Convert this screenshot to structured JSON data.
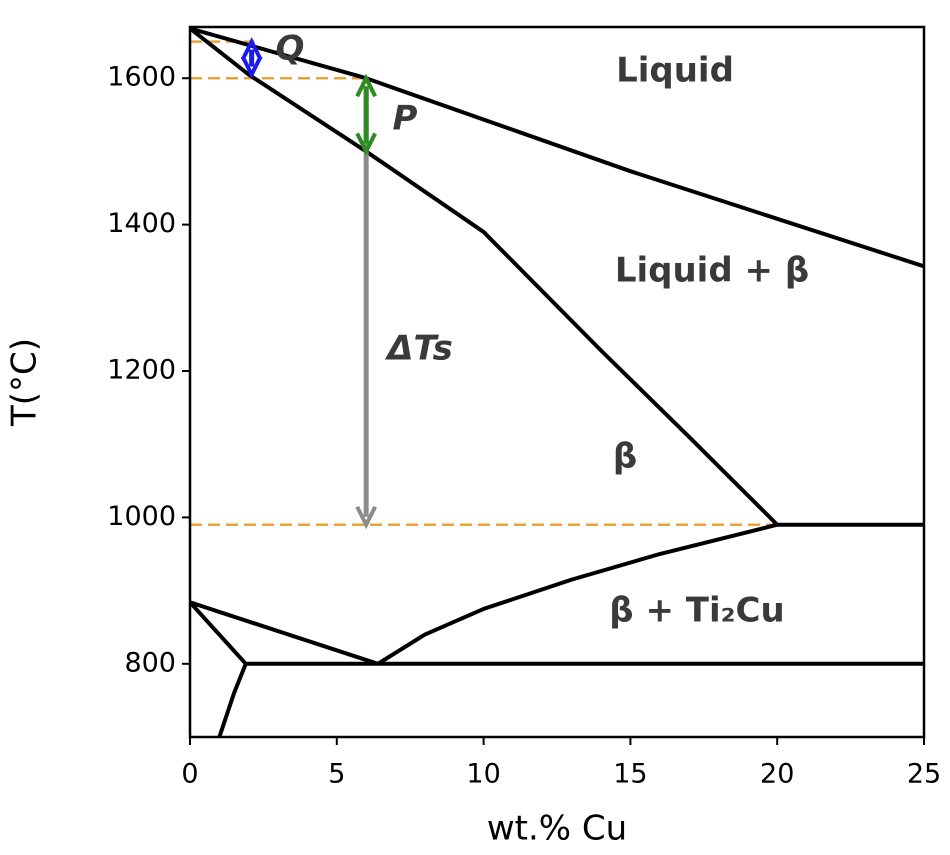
{
  "chart_data": {
    "type": "phase-diagram",
    "xlabel": "wt.% Cu",
    "ylabel": "T(°C)",
    "xlim": [
      0,
      25
    ],
    "ylim": [
      700,
      1670
    ],
    "xticks": [
      0,
      5,
      10,
      15,
      20,
      25
    ],
    "yticks": [
      800,
      1000,
      1200,
      1400,
      1600
    ],
    "series": [
      {
        "color": "#000000",
        "style": "solid",
        "x": [
          0,
          6,
          15,
          25
        ],
        "values": [
          1668,
          1600,
          1473,
          1343
        ]
      },
      {
        "color": "#000000",
        "style": "solid",
        "x": [
          0,
          2,
          6,
          10,
          14,
          17,
          20
        ],
        "values": [
          1668,
          1605,
          1500,
          1390,
          1228,
          1110,
          990
        ]
      },
      {
        "color": "#000000",
        "style": "solid",
        "x": [
          20,
          25
        ],
        "values": [
          990,
          990
        ]
      },
      {
        "color": "#000000",
        "style": "solid",
        "x": [
          6.4,
          8,
          10,
          13,
          16,
          20
        ],
        "values": [
          800,
          840,
          875,
          915,
          950,
          990
        ]
      },
      {
        "color": "#000000",
        "style": "solid",
        "x": [
          0,
          6.4
        ],
        "values": [
          884,
          800
        ]
      },
      {
        "color": "#000000",
        "style": "solid",
        "x": [
          0,
          1.9
        ],
        "values": [
          884,
          800
        ]
      },
      {
        "color": "#000000",
        "style": "solid",
        "x": [
          1.9,
          25
        ],
        "values": [
          800,
          800
        ]
      },
      {
        "color": "#000000",
        "style": "solid",
        "x": [
          1.9,
          1.5,
          1
        ],
        "values": [
          800,
          760,
          700
        ]
      },
      {
        "color": "#e8a43a",
        "style": "dashed",
        "x": [
          0,
          2.2
        ],
        "values": [
          1650,
          1650
        ]
      },
      {
        "color": "#e8a43a",
        "style": "dashed",
        "x": [
          0,
          6
        ],
        "values": [
          1600,
          1600
        ]
      },
      {
        "color": "#e8a43a",
        "style": "dashed",
        "x": [
          0,
          20
        ],
        "values": [
          990,
          990
        ]
      }
    ],
    "arrows": [
      {
        "color": "#8c8c8c",
        "x": 6,
        "values": [
          1600,
          990
        ]
      },
      {
        "color": "#2e8b22",
        "x": 6,
        "values": [
          1600,
          1500
        ]
      },
      {
        "color": "#1a1aee",
        "x": 2.1,
        "values": [
          1650,
          1605
        ]
      }
    ],
    "annotations": [
      "Q",
      "P",
      "ΔTs",
      "Liquid",
      "Liquid + β",
      "β",
      "β + Ti₂Cu"
    ]
  }
}
